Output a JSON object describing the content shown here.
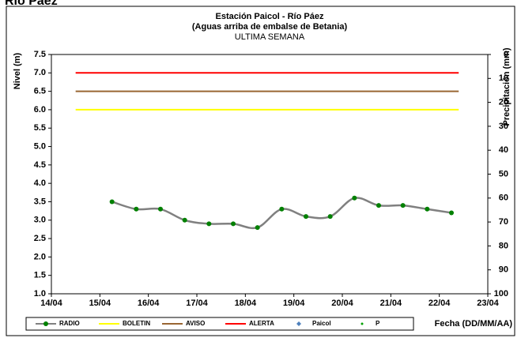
{
  "page_title": "Río Páez",
  "chart_data": {
    "type": "line",
    "title": "Estación Paicol - Río Páez",
    "subtitle": "(Aguas arriba de embalse de Betania)",
    "subtitle2": "ULTIMA SEMANA",
    "ylabel": "Nivel (m)",
    "y2label": "Precipitación (mm)",
    "xlabel": "Fecha (DD/MM/AA)",
    "xlim": [
      14,
      23
    ],
    "xticks": [
      {
        "value": 14,
        "label": "14/04"
      },
      {
        "value": 15,
        "label": "15/04"
      },
      {
        "value": 16,
        "label": "16/04"
      },
      {
        "value": 17,
        "label": "17/04"
      },
      {
        "value": 18,
        "label": "18/04"
      },
      {
        "value": 19,
        "label": "19/04"
      },
      {
        "value": 20,
        "label": "20/04"
      },
      {
        "value": 21,
        "label": "21/04"
      },
      {
        "value": 22,
        "label": "22/04"
      },
      {
        "value": 23,
        "label": "23/04"
      }
    ],
    "ylim": [
      1,
      7.5
    ],
    "yticks": [
      {
        "value": 1,
        "label": "1.0"
      },
      {
        "value": 1.5,
        "label": "1.5"
      },
      {
        "value": 2,
        "label": "2.0"
      },
      {
        "value": 2.5,
        "label": "2.5"
      },
      {
        "value": 3,
        "label": "3.0"
      },
      {
        "value": 3.5,
        "label": "3.5"
      },
      {
        "value": 4,
        "label": "4.0"
      },
      {
        "value": 4.5,
        "label": "4.5"
      },
      {
        "value": 5,
        "label": "5.0"
      },
      {
        "value": 5.5,
        "label": "5.5"
      },
      {
        "value": 6,
        "label": "6.0"
      },
      {
        "value": 6.5,
        "label": "6.5"
      },
      {
        "value": 7,
        "label": "7.0"
      },
      {
        "value": 7.5,
        "label": "7.5"
      }
    ],
    "y2lim": [
      100,
      0
    ],
    "y2ticks": [
      0,
      10,
      20,
      30,
      40,
      50,
      60,
      70,
      80,
      90,
      100
    ],
    "series": [
      {
        "name": "RADIO",
        "color": "#808080",
        "marker": "circle",
        "marker_color": "#008000",
        "smooth": true,
        "x": [
          15.25,
          15.75,
          16.25,
          16.75,
          17.25,
          17.75,
          18.25,
          18.75,
          19.25,
          19.75,
          20.25,
          20.75,
          21.25,
          21.75,
          22.25
        ],
        "values": [
          3.5,
          3.3,
          3.3,
          3.0,
          2.9,
          2.9,
          2.8,
          3.3,
          3.1,
          3.1,
          3.6,
          3.4,
          3.4,
          3.3,
          3.2
        ]
      },
      {
        "name": "BOLETIN",
        "color": "#ffff00",
        "marker": "none",
        "x": [
          14.5,
          22.4
        ],
        "values": [
          6,
          6
        ]
      },
      {
        "name": "AVISO",
        "color": "#996633",
        "marker": "none",
        "x": [
          14.5,
          22.4
        ],
        "values": [
          6.5,
          6.5
        ]
      },
      {
        "name": "ALERTA",
        "color": "#ff0000",
        "marker": "none",
        "x": [
          14.5,
          22.4
        ],
        "values": [
          7,
          7
        ]
      },
      {
        "name": "Paicol",
        "color": "#4f81bd",
        "marker": "diamond",
        "marker_only": true,
        "x": [],
        "values": []
      },
      {
        "name": "P",
        "color": "#00a000",
        "marker": "dot",
        "marker_only": true,
        "axis": "y2",
        "x": [],
        "values": []
      }
    ]
  }
}
